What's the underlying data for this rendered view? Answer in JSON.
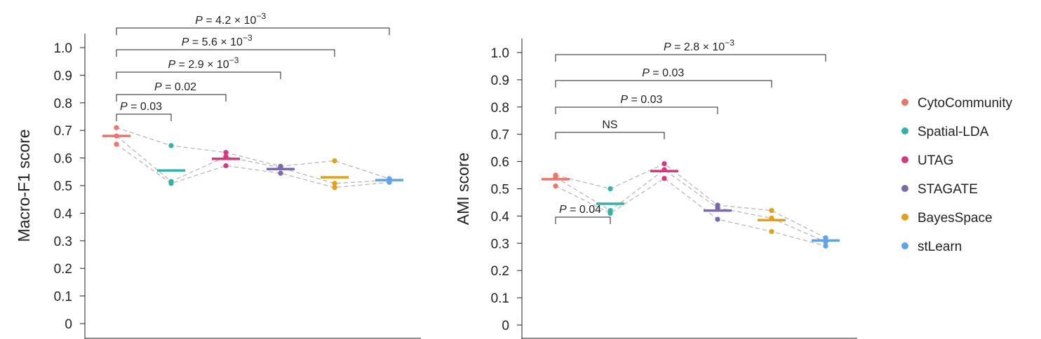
{
  "colors": {
    "CytoCommunity": "#ef7468",
    "Spatial-LDA": "#2bb5a8",
    "UTAG": "#e0327e",
    "STAGATE": "#7b68ae",
    "BayesSpace": "#e5a10c",
    "stLearn": "#5ea2f1"
  },
  "legend": [
    "CytoCommunity",
    "Spatial-LDA",
    "UTAG",
    "STAGATE",
    "BayesSpace",
    "stLearn"
  ],
  "chart_data": [
    {
      "type": "scatter",
      "ylabel": "Macro-F1 score",
      "ylim": [
        0,
        1.0
      ],
      "yticks": [
        "0",
        "0.1",
        "0.2",
        "0.3",
        "0.4",
        "0.5",
        "0.6",
        "0.7",
        "0.8",
        "0.9",
        "1.0"
      ],
      "categories": [
        "CytoCommunity",
        "Spatial-LDA",
        "UTAG",
        "STAGATE",
        "BayesSpace",
        "stLearn"
      ],
      "means": [
        0.68,
        0.555,
        0.597,
        0.56,
        0.53,
        0.52
      ],
      "replicates": [
        [
          0.71,
          0.68,
          0.65
        ],
        [
          0.645,
          0.515,
          0.508
        ],
        [
          0.62,
          0.605,
          0.572
        ],
        [
          0.57,
          0.565,
          0.545
        ],
        [
          0.59,
          0.508,
          0.493
        ],
        [
          0.525,
          0.52,
          0.512
        ]
      ],
      "comparisons": [
        {
          "a": 0,
          "b": 1,
          "label": "P = 0.03"
        },
        {
          "a": 0,
          "b": 2,
          "label": "P = 0.02"
        },
        {
          "a": 0,
          "b": 3,
          "label": "P = 2.9 × 10",
          "exp": "−3"
        },
        {
          "a": 0,
          "b": 4,
          "label": "P = 5.6 × 10",
          "exp": "−3"
        },
        {
          "a": 0,
          "b": 5,
          "label": "P = 4.2 × 10",
          "exp": "−3"
        }
      ]
    },
    {
      "type": "scatter",
      "ylabel": "AMI score",
      "ylim": [
        0,
        1.0
      ],
      "yticks": [
        "0",
        "0.1",
        "0.2",
        "0.3",
        "0.4",
        "0.5",
        "0.6",
        "0.7",
        "0.8",
        "0.9",
        "1.0"
      ],
      "categories": [
        "CytoCommunity",
        "Spatial-LDA",
        "UTAG",
        "STAGATE",
        "BayesSpace",
        "stLearn"
      ],
      "means": [
        0.535,
        0.445,
        0.565,
        0.42,
        0.385,
        0.31
      ],
      "replicates": [
        [
          0.55,
          0.542,
          0.51
        ],
        [
          0.5,
          0.42,
          0.41
        ],
        [
          0.592,
          0.57,
          0.538
        ],
        [
          0.44,
          0.43,
          0.388
        ],
        [
          0.42,
          0.392,
          0.343
        ],
        [
          0.32,
          0.305,
          0.29
        ]
      ],
      "comparisons": [
        {
          "a": 0,
          "b": 1,
          "label": "P = 0.04"
        },
        {
          "a": 0,
          "b": 2,
          "label": "NS"
        },
        {
          "a": 0,
          "b": 3,
          "label": "P = 0.03"
        },
        {
          "a": 0,
          "b": 4,
          "label": "P = 0.03"
        },
        {
          "a": 0,
          "b": 5,
          "label": "P = 2.8 × 10",
          "exp": "−3"
        }
      ]
    }
  ]
}
